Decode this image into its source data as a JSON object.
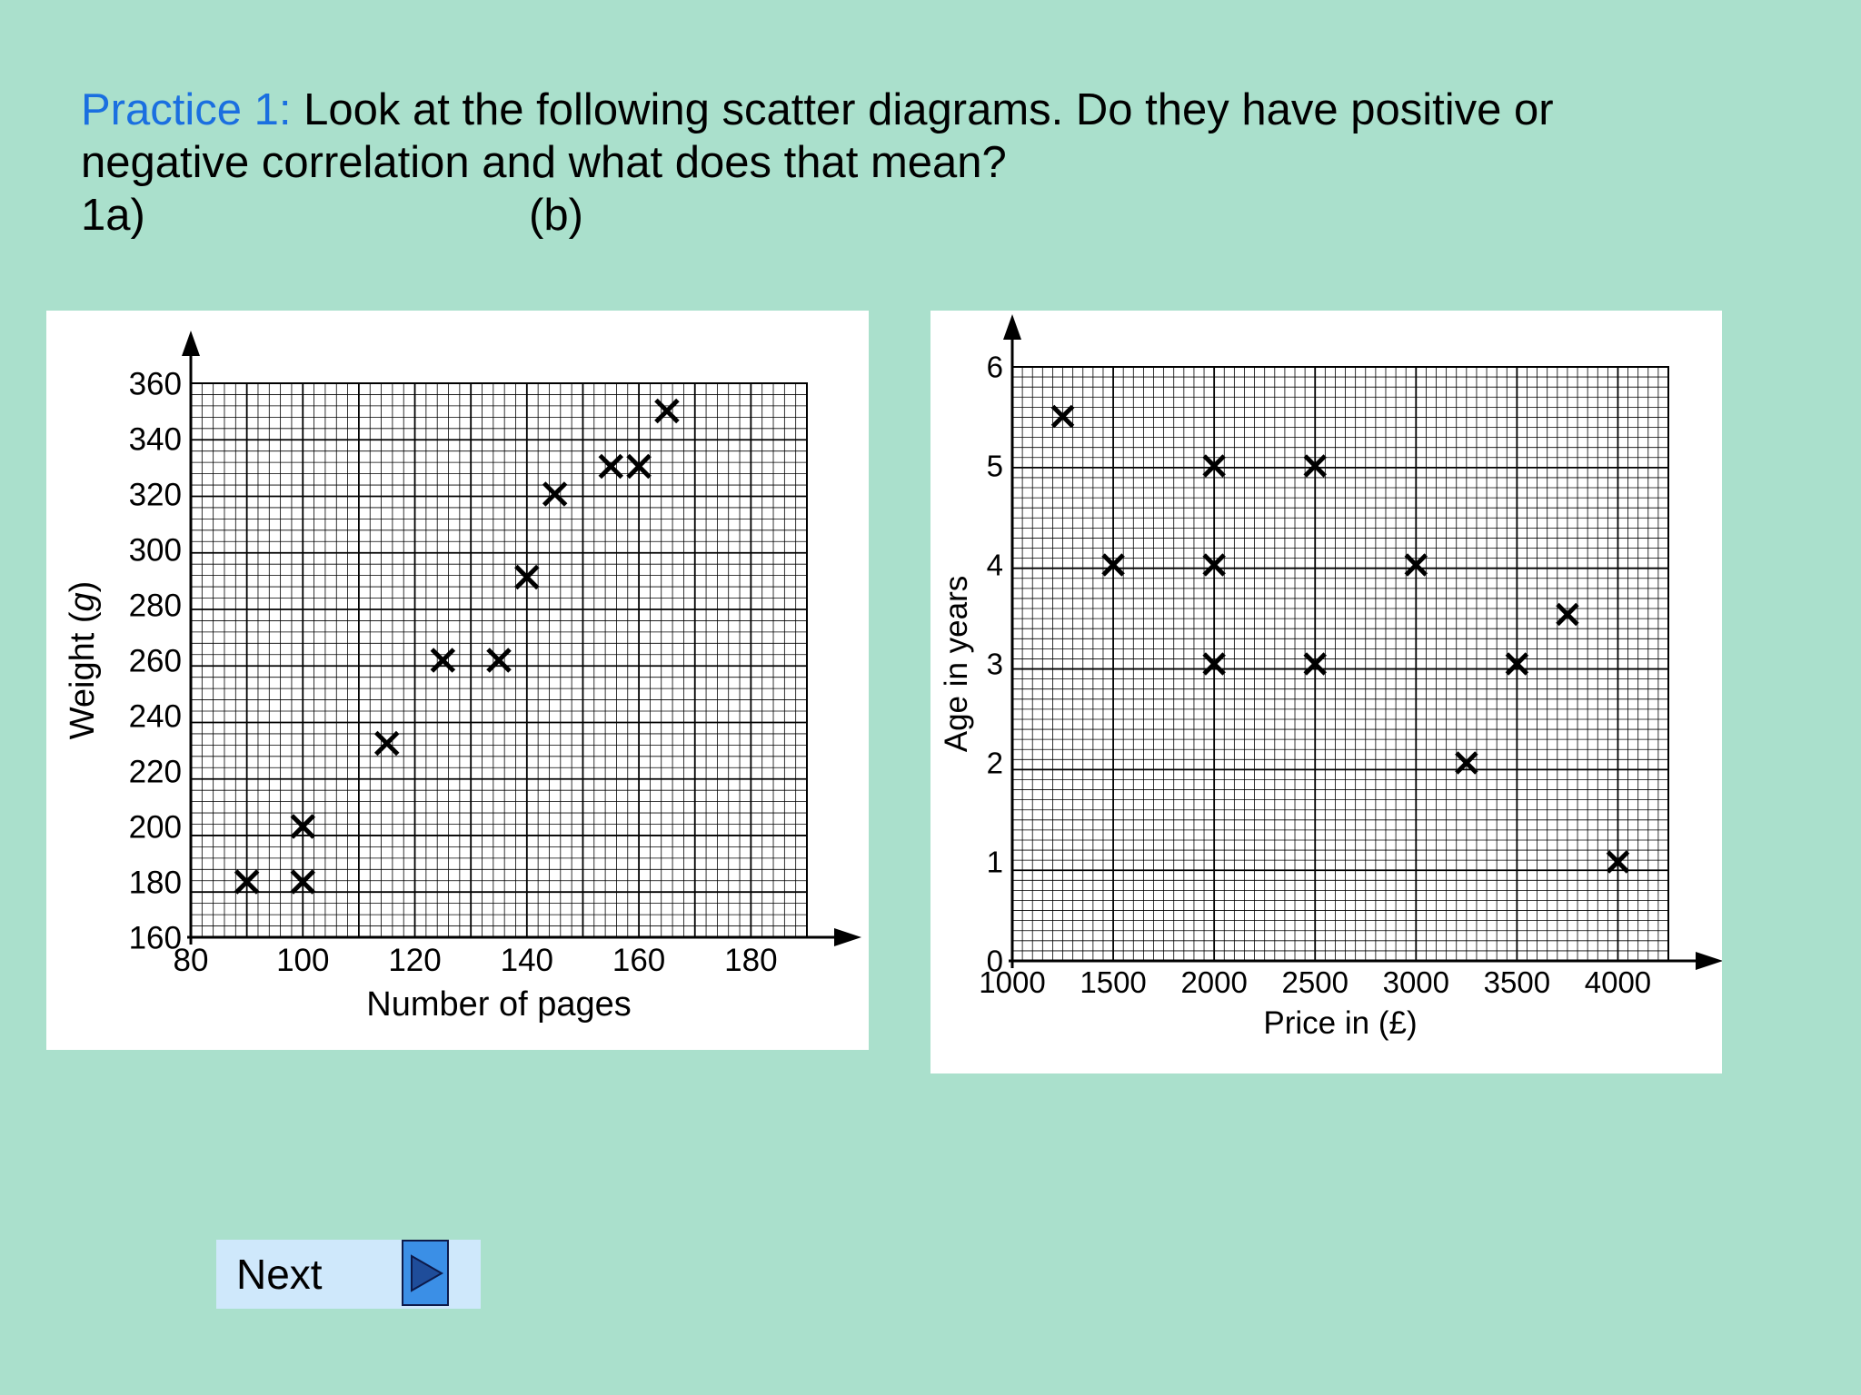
{
  "question": {
    "prefix": "Practice 1:",
    "line1": " Look at the following scatter diagrams. Do they have positive or",
    "line2": "negative correlation and what does that mean?",
    "label_a": "1a)",
    "label_b": "(b)"
  },
  "chart_data": [
    {
      "type": "scatter",
      "title": "",
      "xlabel": "Number of pages",
      "ylabel_prefix": "Weight (",
      "ylabel_unit": "g",
      "ylabel_suffix": ")",
      "xlim": [
        80,
        190
      ],
      "ylim": [
        160,
        360
      ],
      "xticks": [
        "80",
        "100",
        "120",
        "140",
        "160",
        "180"
      ],
      "yticks": [
        "160",
        "180",
        "200",
        "220",
        "240",
        "260",
        "280",
        "300",
        "320",
        "340",
        "360"
      ],
      "grid": true,
      "marker": "cross",
      "x": [
        90,
        100,
        100,
        115,
        125,
        135,
        140,
        145,
        155,
        160,
        165
      ],
      "y": [
        180,
        180,
        200,
        230,
        260,
        260,
        290,
        320,
        330,
        330,
        350
      ]
    },
    {
      "type": "scatter",
      "title": "",
      "xlabel": "Price in (£)",
      "ylabel": "Age in years",
      "xlim": [
        1000,
        4250
      ],
      "ylim": [
        0,
        6
      ],
      "xticks": [
        "1000",
        "1500",
        "2000",
        "2500",
        "3000",
        "3500",
        "4000"
      ],
      "yticks": [
        "0",
        "1",
        "2",
        "3",
        "4",
        "5",
        "6"
      ],
      "grid": true,
      "marker": "cross",
      "x": [
        1250,
        1500,
        2000,
        2000,
        2000,
        2500,
        2500,
        3000,
        3250,
        3500,
        3750,
        4000
      ],
      "y": [
        5.5,
        4,
        5,
        4,
        3,
        5,
        3,
        4,
        2,
        3,
        3.5,
        1
      ]
    }
  ],
  "nav": {
    "next_label": "Next",
    "next_icon": "play-triangle-icon"
  }
}
